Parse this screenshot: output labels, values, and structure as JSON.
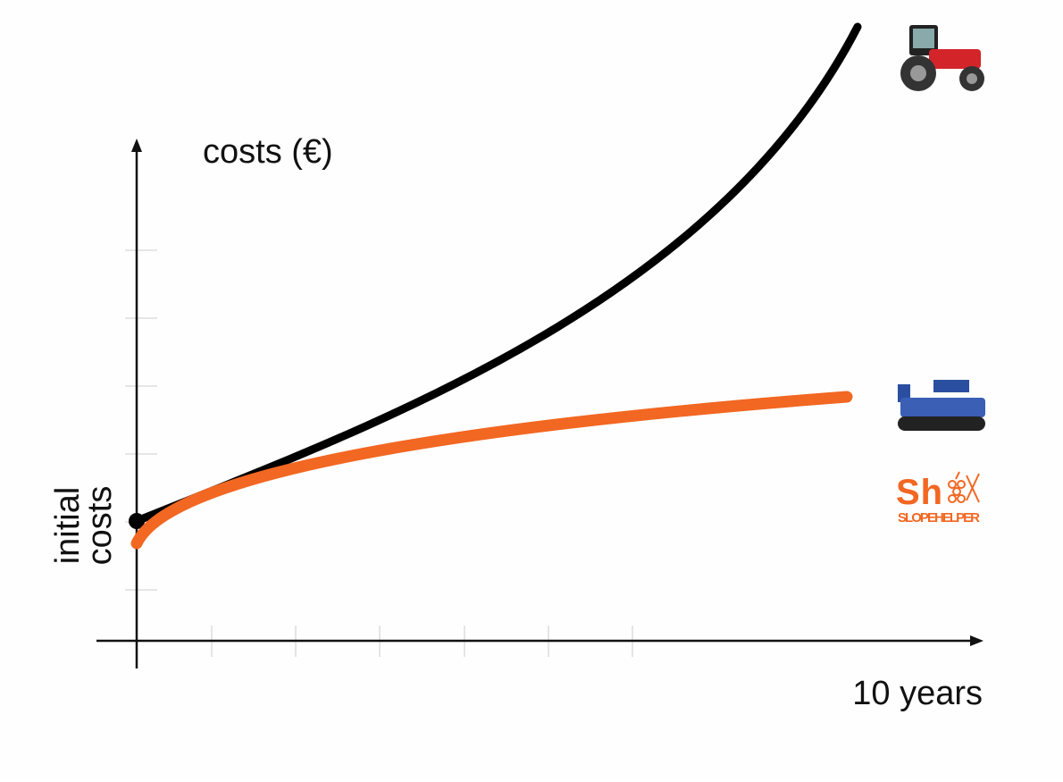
{
  "axes": {
    "y_label": "costs (€)",
    "x_label": "10 years",
    "origin_label": [
      "initial",
      "costs"
    ]
  },
  "logo": {
    "mark": "Sh",
    "name": "SLOPEHELPER"
  }
}
